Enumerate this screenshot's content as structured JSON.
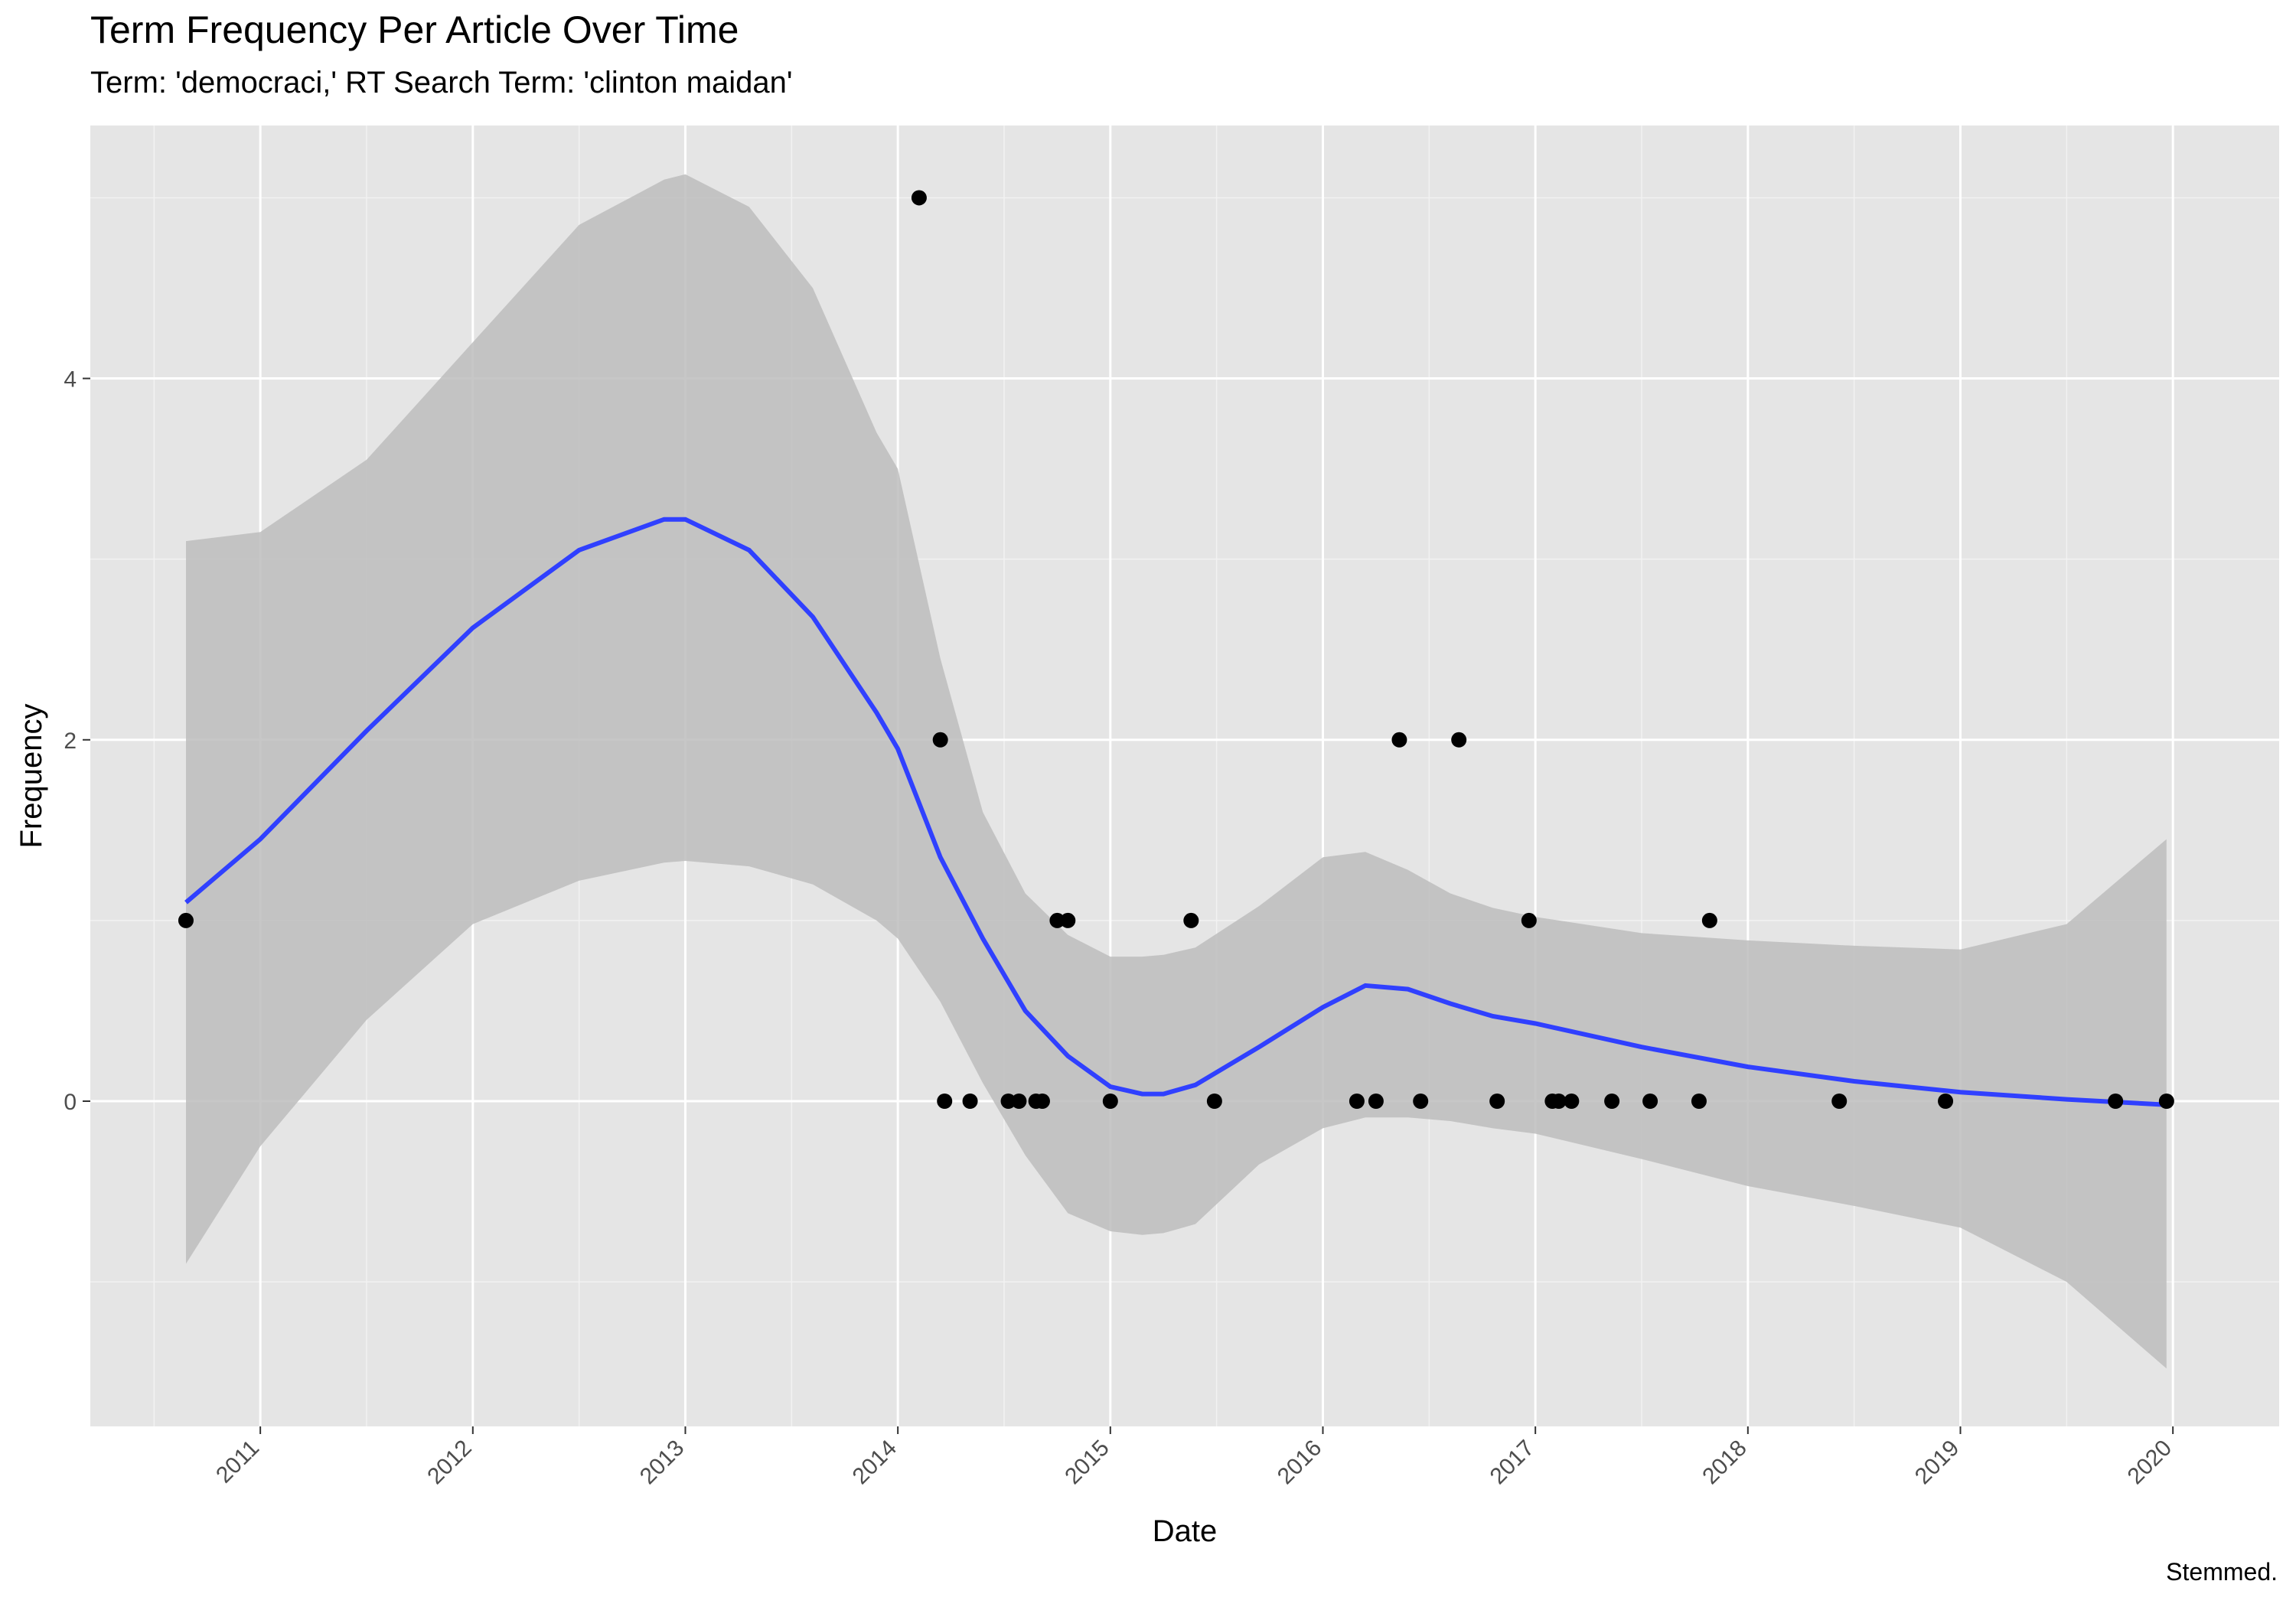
{
  "chart_data": {
    "type": "scatter",
    "title": "Term Frequency Per Article Over Time",
    "subtitle": "Term: 'democraci,' RT Search Term: 'clinton maidan'",
    "caption": "Stemmed.",
    "xlabel": "Date",
    "ylabel": "Frequency",
    "x_ticks": [
      "2011",
      "2012",
      "2013",
      "2014",
      "2015",
      "2016",
      "2017",
      "2018",
      "2019",
      "2020"
    ],
    "y_ticks": [
      0,
      2,
      4
    ],
    "xlim": [
      2010.2,
      2020.5
    ],
    "ylim": [
      -1.8,
      5.4
    ],
    "grid": true,
    "colors": {
      "panel": "#e5e5e5",
      "grid": "#ffffff",
      "points": "#000000",
      "smooth_line": "#3040ff",
      "ribbon": "#bdbdbd"
    },
    "points": [
      {
        "x": 2010.65,
        "y": 1
      },
      {
        "x": 2014.1,
        "y": 5
      },
      {
        "x": 2014.2,
        "y": 2
      },
      {
        "x": 2014.22,
        "y": 0
      },
      {
        "x": 2014.34,
        "y": 0
      },
      {
        "x": 2014.52,
        "y": 0
      },
      {
        "x": 2014.57,
        "y": 0
      },
      {
        "x": 2014.65,
        "y": 0
      },
      {
        "x": 2014.68,
        "y": 0
      },
      {
        "x": 2014.75,
        "y": 1
      },
      {
        "x": 2014.8,
        "y": 1
      },
      {
        "x": 2015.0,
        "y": 0
      },
      {
        "x": 2015.38,
        "y": 1
      },
      {
        "x": 2015.49,
        "y": 0
      },
      {
        "x": 2016.16,
        "y": 0
      },
      {
        "x": 2016.25,
        "y": 0
      },
      {
        "x": 2016.36,
        "y": 2
      },
      {
        "x": 2016.46,
        "y": 0
      },
      {
        "x": 2016.64,
        "y": 2
      },
      {
        "x": 2016.82,
        "y": 0
      },
      {
        "x": 2016.97,
        "y": 1
      },
      {
        "x": 2017.08,
        "y": 0
      },
      {
        "x": 2017.11,
        "y": 0
      },
      {
        "x": 2017.17,
        "y": 0
      },
      {
        "x": 2017.36,
        "y": 0
      },
      {
        "x": 2017.54,
        "y": 0
      },
      {
        "x": 2017.77,
        "y": 0
      },
      {
        "x": 2017.82,
        "y": 1
      },
      {
        "x": 2018.43,
        "y": 0
      },
      {
        "x": 2018.93,
        "y": 0
      },
      {
        "x": 2019.73,
        "y": 0
      },
      {
        "x": 2019.97,
        "y": 0
      }
    ],
    "smooth": {
      "x": [
        2010.65,
        2011.0,
        2011.5,
        2012.0,
        2012.5,
        2012.9,
        2013.0,
        2013.3,
        2013.6,
        2013.9,
        2014.0,
        2014.2,
        2014.4,
        2014.6,
        2014.8,
        2015.0,
        2015.15,
        2015.25,
        2015.4,
        2015.7,
        2016.0,
        2016.2,
        2016.4,
        2016.6,
        2016.8,
        2017.0,
        2017.5,
        2018.0,
        2018.5,
        2019.0,
        2019.5,
        2019.97
      ],
      "y": [
        1.1,
        1.45,
        2.05,
        2.62,
        3.05,
        3.22,
        3.22,
        3.05,
        2.68,
        2.15,
        1.95,
        1.35,
        0.9,
        0.5,
        0.25,
        0.08,
        0.04,
        0.04,
        0.09,
        0.3,
        0.52,
        0.64,
        0.62,
        0.54,
        0.47,
        0.43,
        0.3,
        0.19,
        0.11,
        0.05,
        0.01,
        -0.02
      ],
      "lower": [
        -0.9,
        -0.25,
        0.45,
        0.98,
        1.22,
        1.32,
        1.33,
        1.3,
        1.2,
        1.0,
        0.9,
        0.55,
        0.1,
        -0.3,
        -0.62,
        -0.72,
        -0.74,
        -0.73,
        -0.68,
        -0.35,
        -0.15,
        -0.09,
        -0.09,
        -0.11,
        -0.15,
        -0.18,
        -0.32,
        -0.47,
        -0.58,
        -0.7,
        -1.0,
        -1.48
      ],
      "upper": [
        3.1,
        3.15,
        3.55,
        4.2,
        4.85,
        5.1,
        5.13,
        4.95,
        4.5,
        3.7,
        3.5,
        2.45,
        1.6,
        1.15,
        0.92,
        0.8,
        0.8,
        0.81,
        0.85,
        1.08,
        1.35,
        1.38,
        1.28,
        1.15,
        1.07,
        1.02,
        0.93,
        0.89,
        0.86,
        0.84,
        0.98,
        1.45
      ]
    }
  }
}
